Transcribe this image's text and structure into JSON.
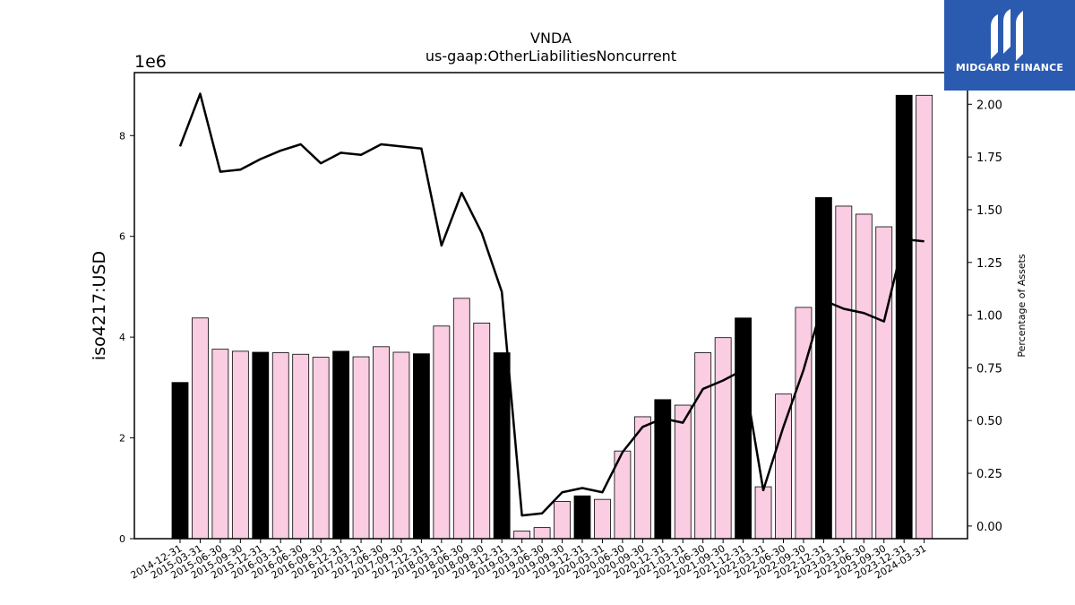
{
  "chart_data": {
    "type": "bar",
    "title": "VNDA",
    "subtitle": "us-gaap:OtherLiabilitiesNoncurrent",
    "ylabel": "iso4217:USD",
    "y2label": "Percentage of Assets",
    "y_offset_label": "1e6",
    "ylim": [
      0,
      9250000
    ],
    "y2lim": [
      -0.06,
      2.15
    ],
    "yticks": [
      0,
      2,
      4,
      6,
      8
    ],
    "y2ticks": [
      "0.00",
      "0.25",
      "0.50",
      "0.75",
      "1.00",
      "1.25",
      "1.50",
      "1.75",
      "2.00"
    ],
    "categories": [
      "2014-12-31",
      "2015-03-31",
      "2015-06-30",
      "2015-09-30",
      "2015-12-31",
      "2016-03-31",
      "2016-06-30",
      "2016-09-30",
      "2016-12-31",
      "2017-03-31",
      "2017-06-30",
      "2017-09-30",
      "2017-12-31",
      "2018-03-31",
      "2018-06-30",
      "2018-09-30",
      "2018-12-31",
      "2019-03-31",
      "2019-06-30",
      "2019-09-30",
      "2019-12-31",
      "2020-03-31",
      "2020-06-30",
      "2020-09-30",
      "2020-12-31",
      "2021-03-31",
      "2021-06-30",
      "2021-09-30",
      "2021-12-31",
      "2022-03-31",
      "2022-06-30",
      "2022-09-30",
      "2022-12-31",
      "2023-03-31",
      "2023-06-30",
      "2023-09-30",
      "2023-12-31",
      "2024-03-31"
    ],
    "series": [
      {
        "kind": "bar",
        "values": [
          3100000,
          4380000,
          3760000,
          3720000,
          3700000,
          3690000,
          3660000,
          3600000,
          3720000,
          3610000,
          3810000,
          3700000,
          3670000,
          4220000,
          4770000,
          4280000,
          3690000,
          150000,
          220000,
          740000,
          850000,
          780000,
          1740000,
          2420000,
          2760000,
          2650000,
          3690000,
          3990000,
          4380000,
          1030000,
          2870000,
          4590000,
          6770000,
          6600000,
          6440000,
          6190000,
          8800000,
          8800000
        ],
        "highlight": [
          true,
          false,
          false,
          false,
          true,
          false,
          false,
          false,
          true,
          false,
          false,
          false,
          true,
          false,
          false,
          false,
          true,
          false,
          false,
          false,
          true,
          false,
          false,
          false,
          true,
          false,
          false,
          false,
          true,
          false,
          false,
          false,
          true,
          false,
          false,
          false,
          true,
          false
        ],
        "color_normal": "#fbcde3",
        "color_highlight": "#000000"
      },
      {
        "kind": "line",
        "axis": "right",
        "values": [
          1.8,
          2.05,
          1.68,
          1.69,
          1.74,
          1.78,
          1.81,
          1.72,
          1.77,
          1.76,
          1.81,
          1.8,
          1.79,
          1.33,
          1.58,
          1.39,
          1.11,
          0.05,
          0.06,
          0.16,
          0.18,
          0.16,
          0.35,
          0.47,
          0.51,
          0.49,
          0.65,
          0.69,
          0.74,
          0.17,
          0.47,
          0.74,
          1.07,
          1.03,
          1.01,
          0.97,
          1.36,
          1.35
        ],
        "color": "#000000"
      }
    ]
  },
  "logo": {
    "text": "MIDGARD FINANCE",
    "bg": "#2b5bb0"
  }
}
